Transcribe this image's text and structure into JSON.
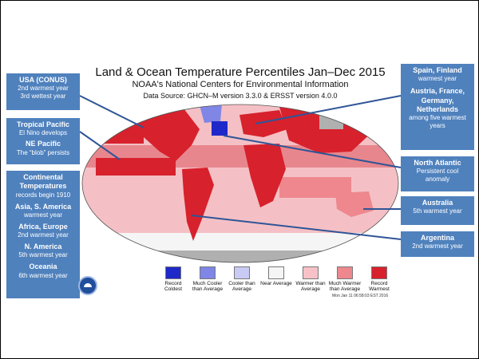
{
  "title": "Land & Ocean Temperature Percentiles Jan–Dec 2015",
  "subtitle": "NOAA's National Centers for Environmental Information",
  "source": "Data Source: GHCN–M version 3.3.0 & ERSST version 4.0.0",
  "timestamp": "Mon Jan 11 06:58:03 EST 2016",
  "legend": [
    {
      "label": "Record Coldest",
      "color": "#1f28c9"
    },
    {
      "label": "Much Cooler than Average",
      "color": "#7f86e6"
    },
    {
      "label": "Cooler than Average",
      "color": "#c9cbf5"
    },
    {
      "label": "Near Average",
      "color": "#f5f5f5"
    },
    {
      "label": "Warmer than Average",
      "color": "#f6c2c7"
    },
    {
      "label": "Much Warmer than Average",
      "color": "#ee878e"
    },
    {
      "label": "Record Warmest",
      "color": "#d7212c"
    }
  ],
  "callouts": {
    "usa": {
      "title": "USA (CONUS)",
      "line1": "2nd warmest year",
      "line2": "3rd wettest year"
    },
    "tropical_pacific": {
      "title": "Tropical Pacific",
      "line1": "El Nino develops"
    },
    "ne_pacific": {
      "title": "NE Pacific",
      "line1": "The “blob” persists"
    },
    "continental": {
      "title": "Continental Temperatures",
      "line1": "records begin 1910"
    },
    "asia": {
      "title": "Asia, S. America",
      "line1": "warmest year"
    },
    "africa": {
      "title": "Africa, Europe",
      "line1": "2nd warmest year"
    },
    "namerica": {
      "title": "N. America",
      "line1": "5th warmest year"
    },
    "oceania": {
      "title": "Oceania",
      "line1": "6th warmest year"
    },
    "spain": {
      "title": "Spain, Finland",
      "line1": "warmest year"
    },
    "austria": {
      "title": "Austria, France, Germany, Netherlands",
      "line1": "among five warmest years"
    },
    "north_atlantic": {
      "title": "North Atlantic",
      "line1": "Persistent cool anomaly"
    },
    "australia": {
      "title": "Australia",
      "line1": "5th warmest year"
    },
    "argentina": {
      "title": "Argentina",
      "line1": "2nd warmest year"
    }
  }
}
